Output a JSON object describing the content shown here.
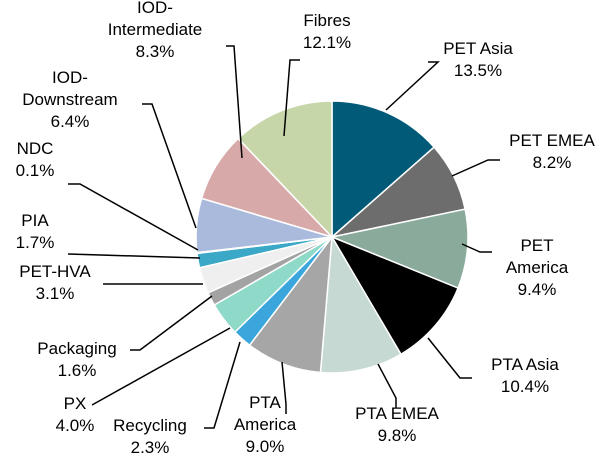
{
  "chart_data": {
    "type": "pie",
    "categories": [
      "PET Asia",
      "PET EMEA",
      "PET America",
      "PTA Asia",
      "PTA EMEA",
      "PTA America",
      "Recycling",
      "PX",
      "Packaging",
      "PET-HVA",
      "PIA",
      "NDC",
      "IOD-Downstream",
      "IOD-Intermediate",
      "Fibres"
    ],
    "values": [
      13.5,
      8.2,
      9.4,
      10.4,
      9.8,
      9.0,
      2.3,
      4.0,
      1.6,
      3.1,
      1.7,
      0.1,
      6.4,
      8.3,
      12.1
    ],
    "value_labels": [
      "13.5%",
      "8.2%",
      "9.4%",
      "10.4%",
      "9.8%",
      "9.0%",
      "2.3%",
      "4.0%",
      "1.6%",
      "3.1%",
      "1.7%",
      "0.1%",
      "6.4%",
      "8.3%",
      "12.1%"
    ],
    "colors": [
      "#005a78",
      "#6d6d6d",
      "#8aab9b",
      "#000000",
      "#c6d9d2",
      "#a6a6a6",
      "#3aa6dc",
      "#8fd9c9",
      "#a3a3a3",
      "#efefef",
      "#3aa8c6",
      "#1f3a60",
      "#a9badd",
      "#d8a9a9",
      "#c6d6a9"
    ]
  }
}
